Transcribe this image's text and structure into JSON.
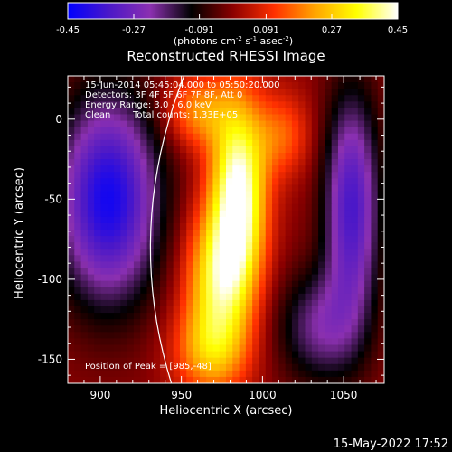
{
  "chart_data": {
    "type": "heatmap",
    "title": "Reconstructed RHESSI Image",
    "xlabel": "Heliocentric X (arcsec)",
    "ylabel": "Heliocentric Y (arcsec)",
    "xlim": [
      880,
      1075
    ],
    "ylim": [
      -165,
      27
    ],
    "xticks": [
      900,
      950,
      1000,
      1050
    ],
    "yticks": [
      0,
      -50,
      -100,
      -150
    ],
    "colorbar": {
      "ticks": [
        -0.45,
        -0.27,
        -0.091,
        0.091,
        0.27,
        0.45
      ],
      "tick_labels": [
        "-0.45",
        "-0.27",
        "-0.091",
        "0.091",
        "0.27",
        "0.45"
      ],
      "unit_label_parts": [
        "(photons cm",
        "-2",
        " s",
        "-1",
        " asec",
        "-2",
        ")"
      ],
      "colors": [
        "#0000ff",
        "#4b18c8",
        "#8b30b0",
        "#000000",
        "#8b0000",
        "#ff3000",
        "#ffa500",
        "#ffff00",
        "#ffffff"
      ]
    },
    "annotations": {
      "time_range": "15-Jun-2014 05:45:04.000 to 05:50:20.000",
      "detectors": "Detectors: 3F 4F 5F 6F 7F 8F, Att 0",
      "energy": "Energy Range: 3.0 - 6.0 keV",
      "algorithm": "Clean",
      "counts": "Total counts: 1.33E+05",
      "peak": "Position of Peak = [985,-48]"
    },
    "peak": {
      "x": 985,
      "y": -48
    },
    "limb_x": 938,
    "components": [
      {
        "x": 985,
        "y": -48,
        "sx": 12,
        "sy": 42,
        "amp": 0.47
      },
      {
        "x": 972,
        "y": -100,
        "sx": 14,
        "sy": 30,
        "amp": 0.3
      },
      {
        "x": 968,
        "y": -145,
        "sx": 16,
        "sy": 20,
        "amp": 0.22
      },
      {
        "x": 960,
        "y": 5,
        "sx": 14,
        "sy": 16,
        "amp": 0.2
      },
      {
        "x": 1012,
        "y": -10,
        "sx": 12,
        "sy": 18,
        "amp": 0.15
      },
      {
        "x": 905,
        "y": -50,
        "sx": 22,
        "sy": 45,
        "amp": -0.42
      },
      {
        "x": 1055,
        "y": -55,
        "sx": 12,
        "sy": 50,
        "amp": -0.34
      },
      {
        "x": 1035,
        "y": -130,
        "sx": 18,
        "sy": 25,
        "amp": -0.2
      }
    ]
  },
  "footer": {
    "timestamp": "15-May-2022 17:52"
  }
}
